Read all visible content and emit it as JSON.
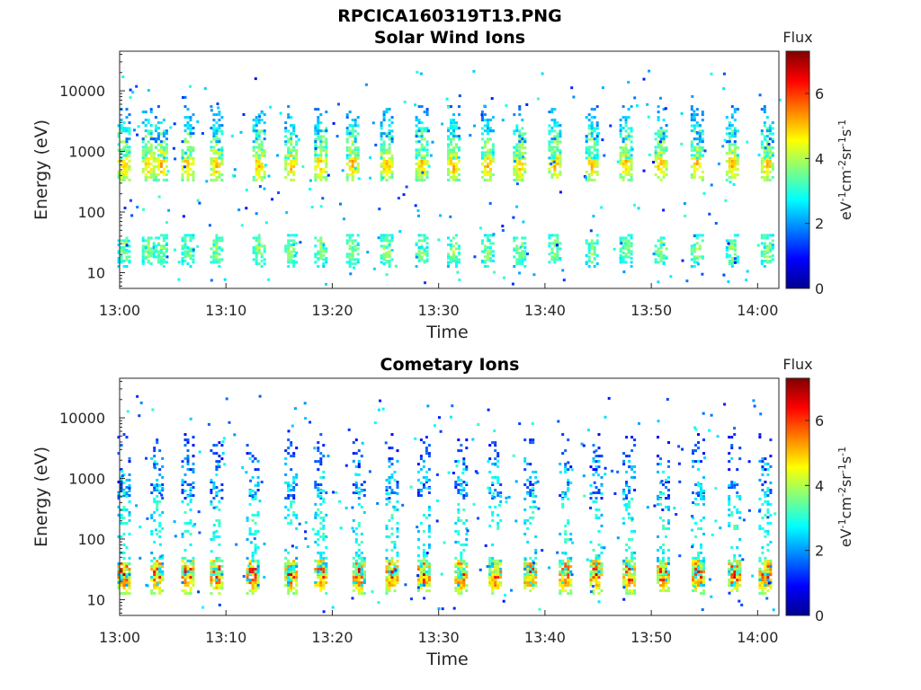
{
  "figure": {
    "title": "RPCICA160319T13.PNG"
  },
  "colormap": {
    "name": "jet",
    "stops": [
      "#00008f",
      "#0000ff",
      "#0080ff",
      "#00ffff",
      "#80ff80",
      "#ffff00",
      "#ff8000",
      "#ff0000",
      "#800000"
    ]
  },
  "chart_data": [
    {
      "type": "heatmap",
      "title": "Solar Wind Ions",
      "xlabel": "Time",
      "ylabel": "Energy (eV)",
      "yscale": "log",
      "xlim": [
        "13:00",
        "14:02"
      ],
      "ylim": [
        5.5,
        45000
      ],
      "x_ticks": [
        "13:00",
        "13:10",
        "13:20",
        "13:30",
        "13:40",
        "13:50",
        "14:00"
      ],
      "y_ticks": [
        "10",
        "100",
        "1000",
        "10000"
      ],
      "colorbar": {
        "title": "Flux",
        "label": "eV-1cm-2sr-1s-1",
        "range": [
          0,
          7.3
        ],
        "ticks": [
          "0",
          "2",
          "4",
          "6"
        ]
      },
      "sweep_minutes": [
        0.3,
        2.6,
        3.8,
        6.3,
        9.0,
        13.0,
        16.0,
        18.8,
        21.8,
        25.0,
        28.3,
        31.3,
        34.5,
        37.5,
        40.8,
        44.3,
        47.5,
        50.8,
        54.2,
        57.5,
        60.8
      ],
      "bands": [
        {
          "energy_eV": 650,
          "flux": 4.2,
          "coverage": 0.9,
          "spread": 0.09
        },
        {
          "energy_eV": 1500,
          "flux": 3.2,
          "coverage": 0.6,
          "spread": 0.09
        },
        {
          "energy_eV": 2900,
          "flux": 2.1,
          "coverage": 0.35,
          "spread": 0.1
        },
        {
          "energy_eV": 25,
          "flux": 3.3,
          "coverage": 0.7,
          "spread": 0.08
        },
        {
          "energy_eV": 20,
          "flux": 3.0,
          "coverage": 0.35,
          "spread": 0.06
        }
      ]
    },
    {
      "type": "heatmap",
      "title": "Cometary Ions",
      "xlabel": "Time",
      "ylabel": "Energy (eV)",
      "yscale": "log",
      "xlim": [
        "13:00",
        "14:02"
      ],
      "ylim": [
        5.5,
        45000
      ],
      "x_ticks": [
        "13:00",
        "13:10",
        "13:20",
        "13:30",
        "13:40",
        "13:50",
        "14:00"
      ],
      "y_ticks": [
        "10",
        "100",
        "1000",
        "10000"
      ],
      "colorbar": {
        "title": "Flux",
        "label": "eV-1cm-2sr-1s-1",
        "range": [
          0,
          7.3
        ],
        "ticks": [
          "0",
          "2",
          "4",
          "6"
        ]
      },
      "sweep_minutes": [
        0.3,
        3.4,
        6.3,
        9.0,
        12.4,
        16.0,
        18.8,
        22.4,
        25.5,
        28.5,
        32.0,
        35.2,
        38.5,
        41.8,
        44.7,
        47.8,
        51.0,
        54.3,
        57.7,
        60.6
      ],
      "bands": [
        {
          "energy_eV": 28,
          "flux": 5.6,
          "coverage": 0.95,
          "spread": 0.07
        },
        {
          "energy_eV": 20,
          "flux": 4.3,
          "coverage": 0.7,
          "spread": 0.06
        },
        {
          "energy_eV": 36,
          "flux": 3.6,
          "coverage": 0.6,
          "spread": 0.05
        },
        {
          "energy_eV": 650,
          "flux": 1.5,
          "coverage": 0.45,
          "spread": 0.05
        },
        {
          "energy_eV": 200,
          "flux": 2.6,
          "coverage": 0.25,
          "spread": 0.35
        },
        {
          "energy_eV": 2800,
          "flux": 1.3,
          "coverage": 0.2,
          "spread": 0.1
        }
      ]
    }
  ]
}
